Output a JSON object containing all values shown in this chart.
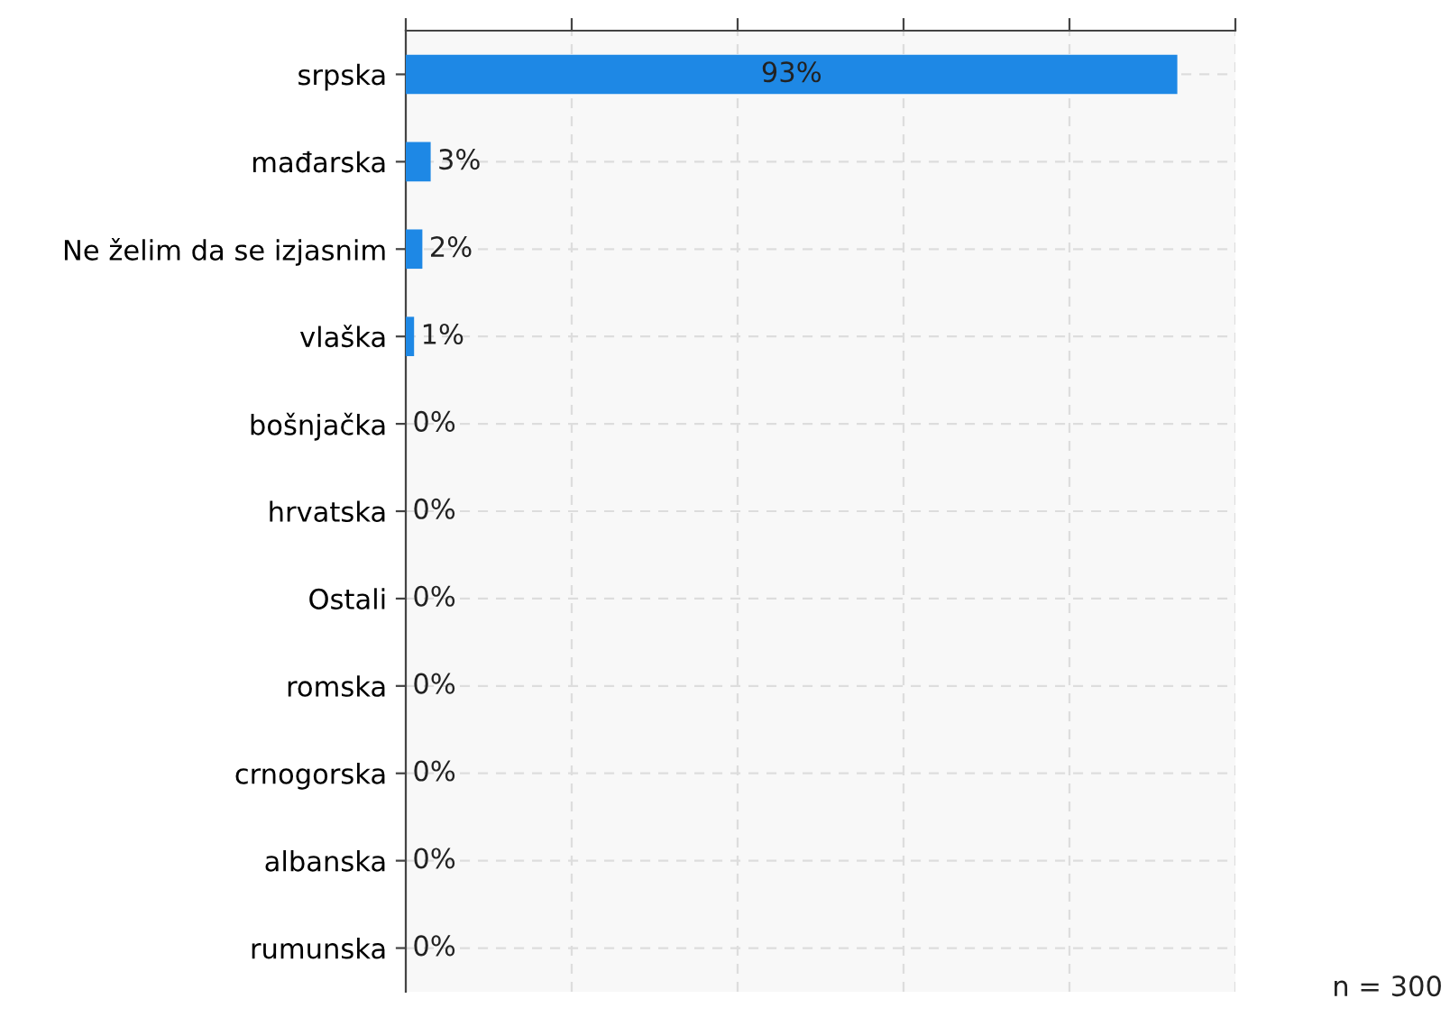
{
  "chart_data": {
    "type": "bar",
    "orientation": "horizontal",
    "categories": [
      "srpska",
      "mađarska",
      "Ne želim da se izjasnim",
      "vlaška",
      "bošnjačka",
      "hrvatska",
      "Ostali",
      "romska",
      "crnogorska",
      "albanska",
      "rumunska"
    ],
    "values": [
      93,
      3,
      2,
      1,
      0,
      0,
      0,
      0,
      0,
      0,
      0
    ],
    "value_labels": [
      "93%",
      "3%",
      "2%",
      "1%",
      "0%",
      "0%",
      "0%",
      "0%",
      "0%",
      "0%",
      "0%"
    ],
    "color": "#1e88e5",
    "xlim": [
      0,
      100
    ],
    "xticks": [
      {
        "value": 0,
        "label": null
      },
      {
        "value": 20,
        "label": null
      },
      {
        "value": 40,
        "label": null
      },
      {
        "value": 60,
        "label": null
      },
      {
        "value": 80,
        "label": null
      },
      {
        "value": 100,
        "label": null
      }
    ],
    "tick_labels": "y",
    "grid": true,
    "annotations": [
      "n = 300"
    ]
  }
}
